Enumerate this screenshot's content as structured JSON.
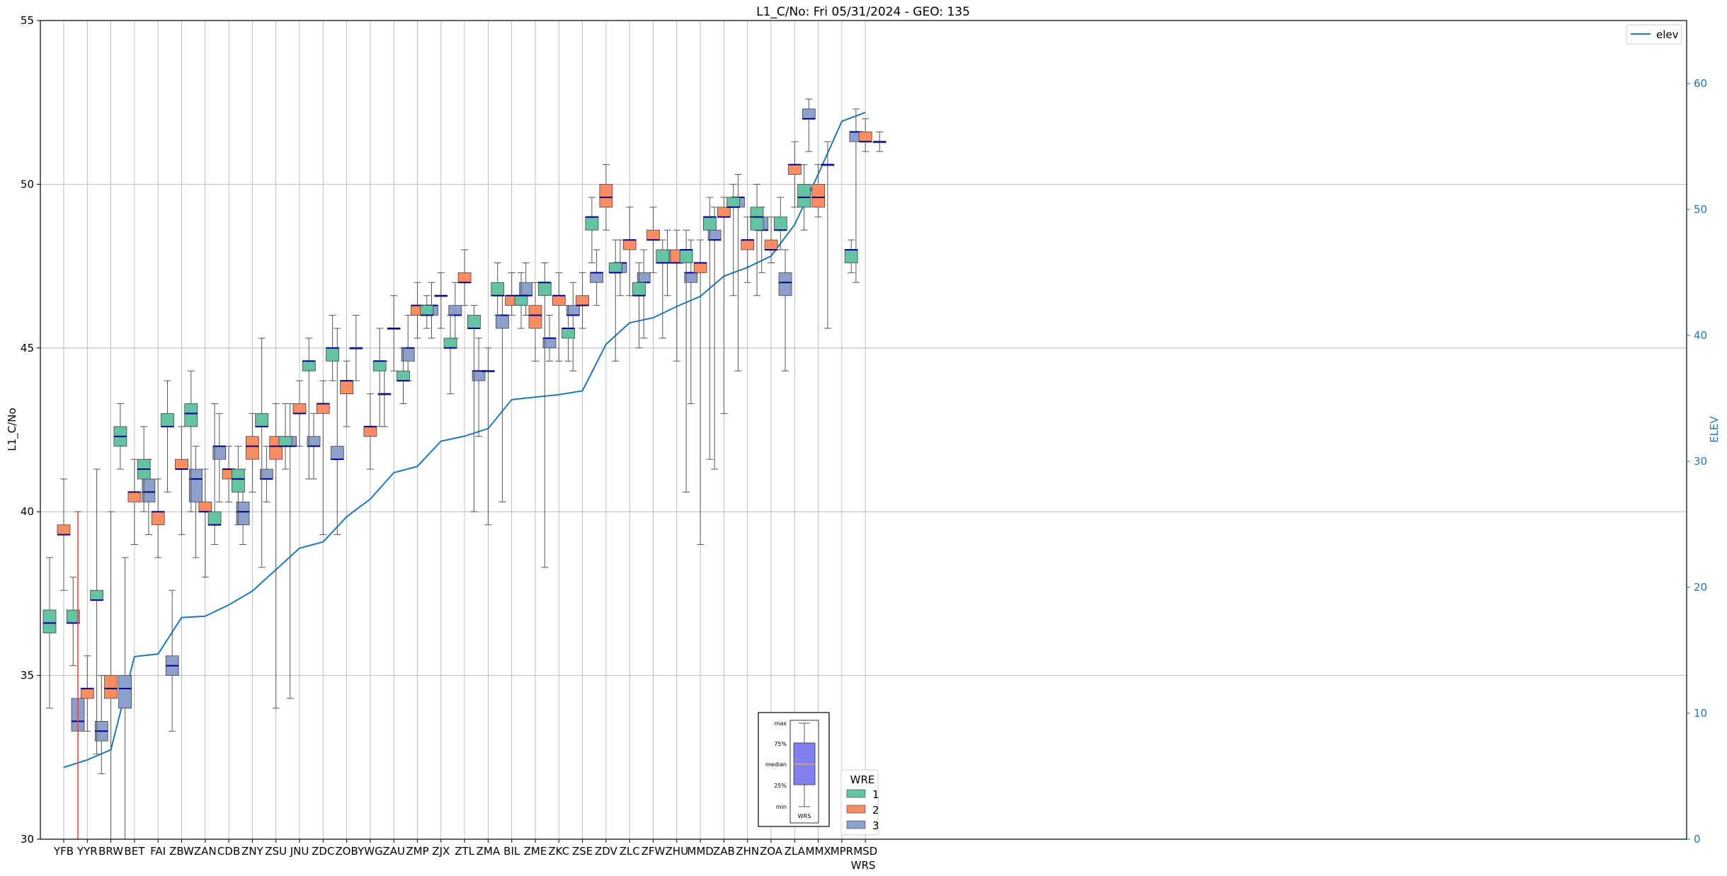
{
  "chart_data": {
    "type": "box",
    "title": "L1_C/No: Fri 05/31/2024 - GEO: 135",
    "xlabel": "WRS",
    "ylabel": "L1_C/No",
    "y2label": "ELEV",
    "ylim": [
      30,
      55
    ],
    "y2lim": [
      0,
      65
    ],
    "yticks": [
      30,
      35,
      40,
      45,
      50,
      55
    ],
    "y2ticks": [
      0,
      10,
      20,
      30,
      40,
      50,
      60
    ],
    "grid": true,
    "categories": [
      "YFB",
      "YYR",
      "BRW",
      "BET",
      "FAI",
      "ZBW",
      "ZAN",
      "CDB",
      "ZNY",
      "ZSU",
      "JNU",
      "ZDC",
      "ZOB",
      "YWG",
      "ZAU",
      "ZMP",
      "ZJX",
      "ZTL",
      "ZMA",
      "BIL",
      "ZME",
      "ZKC",
      "ZSE",
      "ZDV",
      "ZLC",
      "ZFW",
      "ZHU",
      "MMD",
      "ZAB",
      "ZHN",
      "ZOA",
      "ZLA",
      "MMX",
      "MPR",
      "MSD"
    ],
    "wre_colors": {
      "1": "#66c2a5",
      "2": "#fc8d62",
      "3": "#8da0cb"
    },
    "boxes": [
      {
        "cat": "YFB",
        "wre": 1,
        "min": 34.0,
        "q1": 36.3,
        "median": 36.6,
        "q3": 37.0,
        "max": 38.6
      },
      {
        "cat": "YFB",
        "wre": 2,
        "min": 37.6,
        "q1": 39.3,
        "median": 39.3,
        "q3": 39.6,
        "max": 41.0
      },
      {
        "cat": "YFB",
        "wre": 3,
        "min": 30.0,
        "q1": 33.3,
        "median": 33.6,
        "q3": 34.3,
        "max": 40.0
      },
      {
        "cat": "YYR",
        "wre": 1,
        "min": 35.3,
        "q1": 36.6,
        "median": 36.6,
        "q3": 37.0,
        "max": 38.0
      },
      {
        "cat": "YYR",
        "wre": 2,
        "min": 33.3,
        "q1": 34.3,
        "median": 34.6,
        "q3": 34.6,
        "max": 35.6
      },
      {
        "cat": "YYR",
        "wre": 3,
        "min": 32.0,
        "q1": 33.0,
        "median": 33.3,
        "q3": 33.6,
        "max": 35.0
      },
      {
        "cat": "BRW",
        "wre": 1,
        "min": 32.6,
        "q1": 37.3,
        "median": 37.3,
        "q3": 37.6,
        "max": 41.3
      },
      {
        "cat": "BRW",
        "wre": 2,
        "min": 30.0,
        "q1": 34.3,
        "median": 34.6,
        "q3": 35.0,
        "max": 40.0
      },
      {
        "cat": "BRW",
        "wre": 3,
        "min": 30.0,
        "q1": 34.0,
        "median": 34.6,
        "q3": 35.0,
        "max": 38.6
      },
      {
        "cat": "BET",
        "wre": 1,
        "min": 41.3,
        "q1": 42.0,
        "median": 42.3,
        "q3": 42.6,
        "max": 43.3
      },
      {
        "cat": "BET",
        "wre": 2,
        "min": 39.0,
        "q1": 40.3,
        "median": 40.6,
        "q3": 40.6,
        "max": 41.6
      },
      {
        "cat": "BET",
        "wre": 3,
        "min": 39.3,
        "q1": 40.3,
        "median": 40.6,
        "q3": 41.0,
        "max": 41.6
      },
      {
        "cat": "FAI",
        "wre": 1,
        "min": 40.0,
        "q1": 41.0,
        "median": 41.3,
        "q3": 41.6,
        "max": 42.6
      },
      {
        "cat": "FAI",
        "wre": 2,
        "min": 38.6,
        "q1": 39.6,
        "median": 40.0,
        "q3": 40.0,
        "max": 41.0
      },
      {
        "cat": "FAI",
        "wre": 3,
        "min": 33.3,
        "q1": 35.0,
        "median": 35.3,
        "q3": 35.6,
        "max": 37.6
      },
      {
        "cat": "ZBW",
        "wre": 1,
        "min": 40.6,
        "q1": 42.6,
        "median": 42.6,
        "q3": 43.0,
        "max": 44.0
      },
      {
        "cat": "ZBW",
        "wre": 2,
        "min": 39.3,
        "q1": 41.3,
        "median": 41.3,
        "q3": 41.6,
        "max": 42.6
      },
      {
        "cat": "ZBW",
        "wre": 3,
        "min": 38.6,
        "q1": 40.3,
        "median": 41.0,
        "q3": 41.3,
        "max": 42.0
      },
      {
        "cat": "ZAN",
        "wre": 1,
        "min": 40.0,
        "q1": 42.6,
        "median": 43.0,
        "q3": 43.3,
        "max": 44.3
      },
      {
        "cat": "ZAN",
        "wre": 2,
        "min": 38.0,
        "q1": 40.0,
        "median": 40.0,
        "q3": 40.3,
        "max": 41.3
      },
      {
        "cat": "ZAN",
        "wre": 3,
        "min": 40.3,
        "q1": 41.6,
        "median": 42.0,
        "q3": 42.0,
        "max": 43.0
      },
      {
        "cat": "CDB",
        "wre": 1,
        "min": 39.0,
        "q1": 39.6,
        "median": 39.6,
        "q3": 40.0,
        "max": 43.3
      },
      {
        "cat": "CDB",
        "wre": 2,
        "min": 40.3,
        "q1": 41.0,
        "median": 41.3,
        "q3": 41.3,
        "max": 42.0
      },
      {
        "cat": "CDB",
        "wre": 3,
        "min": 39.0,
        "q1": 39.6,
        "median": 40.0,
        "q3": 40.3,
        "max": 41.3
      },
      {
        "cat": "ZNY",
        "wre": 1,
        "min": 39.6,
        "q1": 40.6,
        "median": 41.0,
        "q3": 41.3,
        "max": 42.0
      },
      {
        "cat": "ZNY",
        "wre": 2,
        "min": 40.6,
        "q1": 41.6,
        "median": 42.0,
        "q3": 42.3,
        "max": 43.0
      },
      {
        "cat": "ZNY",
        "wre": 3,
        "min": 40.3,
        "q1": 41.0,
        "median": 41.0,
        "q3": 41.3,
        "max": 42.0
      },
      {
        "cat": "ZSU",
        "wre": 1,
        "min": 38.3,
        "q1": 42.6,
        "median": 42.6,
        "q3": 43.0,
        "max": 45.3
      },
      {
        "cat": "ZSU",
        "wre": 2,
        "min": 34.0,
        "q1": 41.6,
        "median": 42.0,
        "q3": 42.3,
        "max": 43.3
      },
      {
        "cat": "ZSU",
        "wre": 3,
        "min": 34.3,
        "q1": 42.0,
        "median": 42.0,
        "q3": 42.3,
        "max": 43.3
      },
      {
        "cat": "JNU",
        "wre": 1,
        "min": 41.3,
        "q1": 42.0,
        "median": 42.0,
        "q3": 42.3,
        "max": 43.3
      },
      {
        "cat": "JNU",
        "wre": 2,
        "min": 42.0,
        "q1": 43.0,
        "median": 43.0,
        "q3": 43.3,
        "max": 44.0
      },
      {
        "cat": "JNU",
        "wre": 3,
        "min": 41.0,
        "q1": 42.0,
        "median": 42.0,
        "q3": 42.3,
        "max": 43.0
      },
      {
        "cat": "ZDC",
        "wre": 1,
        "min": 41.0,
        "q1": 44.3,
        "median": 44.6,
        "q3": 44.6,
        "max": 45.3
      },
      {
        "cat": "ZDC",
        "wre": 2,
        "min": 39.3,
        "q1": 43.0,
        "median": 43.3,
        "q3": 43.3,
        "max": 44.0
      },
      {
        "cat": "ZDC",
        "wre": 3,
        "min": 39.3,
        "q1": 41.6,
        "median": 41.6,
        "q3": 42.0,
        "max": 45.6
      },
      {
        "cat": "ZOB",
        "wre": 1,
        "min": 44.0,
        "q1": 44.6,
        "median": 45.0,
        "q3": 45.0,
        "max": 46.0
      },
      {
        "cat": "ZOB",
        "wre": 2,
        "min": 42.6,
        "q1": 43.6,
        "median": 44.0,
        "q3": 44.0,
        "max": 44.6
      },
      {
        "cat": "YWG",
        "wre": 3,
        "min": 42.6,
        "q1": 43.6,
        "median": 43.6,
        "q3": 43.6,
        "max": 44.6
      },
      {
        "cat": "YWG",
        "wre": 2,
        "min": 41.3,
        "q1": 42.3,
        "median": 42.6,
        "q3": 42.6,
        "max": 43.6
      },
      {
        "cat": "YWG",
        "wre": 1,
        "min": 44.0,
        "q1": 45.0,
        "median": 45.0,
        "q3": 45.0,
        "max": 46.0
      },
      {
        "cat": "ZAU",
        "wre": 1,
        "min": 42.6,
        "q1": 44.3,
        "median": 44.6,
        "q3": 44.6,
        "max": 45.6
      },
      {
        "cat": "ZAU",
        "wre": 2,
        "min": 44.3,
        "q1": 45.6,
        "median": 45.6,
        "q3": 45.6,
        "max": 46.6
      },
      {
        "cat": "ZAU",
        "wre": 3,
        "min": 44.0,
        "q1": 44.6,
        "median": 45.0,
        "q3": 45.0,
        "max": 46.0
      },
      {
        "cat": "ZMP",
        "wre": 1,
        "min": 43.3,
        "q1": 44.0,
        "median": 44.0,
        "q3": 44.3,
        "max": 45.0
      },
      {
        "cat": "ZMP",
        "wre": 2,
        "min": 45.3,
        "q1": 46.0,
        "median": 46.3,
        "q3": 46.3,
        "max": 47.0
      },
      {
        "cat": "ZMP",
        "wre": 3,
        "min": 45.3,
        "q1": 46.0,
        "median": 46.3,
        "q3": 46.3,
        "max": 47.0
      },
      {
        "cat": "ZJX",
        "wre": 1,
        "min": 45.6,
        "q1": 46.0,
        "median": 46.0,
        "q3": 46.3,
        "max": 46.6
      },
      {
        "cat": "ZJX",
        "wre": 2,
        "min": 45.6,
        "q1": 46.6,
        "median": 46.6,
        "q3": 46.6,
        "max": 47.3
      },
      {
        "cat": "ZJX",
        "wre": 3,
        "min": 45.3,
        "q1": 46.0,
        "median": 46.0,
        "q3": 46.3,
        "max": 47.0
      },
      {
        "cat": "ZTL",
        "wre": 1,
        "min": 43.6,
        "q1": 45.0,
        "median": 45.0,
        "q3": 45.3,
        "max": 46.0
      },
      {
        "cat": "ZTL",
        "wre": 2,
        "min": 46.3,
        "q1": 47.0,
        "median": 47.0,
        "q3": 47.3,
        "max": 48.0
      },
      {
        "cat": "ZTL",
        "wre": 3,
        "min": 42.3,
        "q1": 44.0,
        "median": 44.3,
        "q3": 44.3,
        "max": 45.3
      },
      {
        "cat": "ZMA",
        "wre": 1,
        "min": 40.0,
        "q1": 45.6,
        "median": 45.6,
        "q3": 46.0,
        "max": 46.3
      },
      {
        "cat": "ZMA",
        "wre": 2,
        "min": 39.6,
        "q1": 44.3,
        "median": 44.3,
        "q3": 44.3,
        "max": 45.0
      },
      {
        "cat": "ZMA",
        "wre": 3,
        "min": 40.3,
        "q1": 45.6,
        "median": 46.0,
        "q3": 46.0,
        "max": 46.6
      },
      {
        "cat": "BIL",
        "wre": 1,
        "min": 46.0,
        "q1": 46.6,
        "median": 46.6,
        "q3": 47.0,
        "max": 47.6
      },
      {
        "cat": "BIL",
        "wre": 2,
        "min": 46.0,
        "q1": 46.3,
        "median": 46.6,
        "q3": 46.6,
        "max": 47.3
      },
      {
        "cat": "BIL",
        "wre": 3,
        "min": 46.0,
        "q1": 46.6,
        "median": 46.6,
        "q3": 47.0,
        "max": 47.6
      },
      {
        "cat": "ZME",
        "wre": 1,
        "min": 45.6,
        "q1": 46.3,
        "median": 46.6,
        "q3": 46.6,
        "max": 47.3
      },
      {
        "cat": "ZME",
        "wre": 2,
        "min": 44.6,
        "q1": 45.6,
        "median": 46.0,
        "q3": 46.3,
        "max": 47.0
      },
      {
        "cat": "ZME",
        "wre": 3,
        "min": 44.6,
        "q1": 45.0,
        "median": 45.3,
        "q3": 45.3,
        "max": 46.0
      },
      {
        "cat": "ZKC",
        "wre": 1,
        "min": 38.3,
        "q1": 46.6,
        "median": 47.0,
        "q3": 47.0,
        "max": 47.6
      },
      {
        "cat": "ZKC",
        "wre": 2,
        "min": 44.6,
        "q1": 46.3,
        "median": 46.6,
        "q3": 46.6,
        "max": 47.3
      },
      {
        "cat": "ZKC",
        "wre": 3,
        "min": 44.3,
        "q1": 46.0,
        "median": 46.0,
        "q3": 46.3,
        "max": 47.0
      },
      {
        "cat": "ZSE",
        "wre": 1,
        "min": 44.6,
        "q1": 45.3,
        "median": 45.6,
        "q3": 45.6,
        "max": 46.3
      },
      {
        "cat": "ZSE",
        "wre": 2,
        "min": 45.6,
        "q1": 46.3,
        "median": 46.3,
        "q3": 46.6,
        "max": 47.3
      },
      {
        "cat": "ZSE",
        "wre": 3,
        "min": 46.3,
        "q1": 47.0,
        "median": 47.3,
        "q3": 47.3,
        "max": 48.0
      },
      {
        "cat": "ZDV",
        "wre": 1,
        "min": 47.6,
        "q1": 48.6,
        "median": 49.0,
        "q3": 49.0,
        "max": 49.6
      },
      {
        "cat": "ZDV",
        "wre": 2,
        "min": 48.6,
        "q1": 49.3,
        "median": 49.6,
        "q3": 50.0,
        "max": 50.6
      },
      {
        "cat": "ZDV",
        "wre": 3,
        "min": 46.6,
        "q1": 47.3,
        "median": 47.6,
        "q3": 47.6,
        "max": 48.3
      },
      {
        "cat": "ZLC",
        "wre": 1,
        "min": 44.6,
        "q1": 47.3,
        "median": 47.3,
        "q3": 47.6,
        "max": 48.3
      },
      {
        "cat": "ZLC",
        "wre": 2,
        "min": 46.6,
        "q1": 48.0,
        "median": 48.3,
        "q3": 48.3,
        "max": 49.3
      },
      {
        "cat": "ZLC",
        "wre": 3,
        "min": 45.3,
        "q1": 47.0,
        "median": 47.0,
        "q3": 47.3,
        "max": 48.0
      },
      {
        "cat": "ZFW",
        "wre": 1,
        "min": 45.0,
        "q1": 46.6,
        "median": 46.6,
        "q3": 47.0,
        "max": 47.6
      },
      {
        "cat": "ZFW",
        "wre": 2,
        "min": 47.3,
        "q1": 48.3,
        "median": 48.3,
        "q3": 48.6,
        "max": 49.3
      },
      {
        "cat": "ZFW",
        "wre": 3,
        "min": 46.6,
        "q1": 47.6,
        "median": 47.6,
        "q3": 48.0,
        "max": 48.6
      },
      {
        "cat": "ZHU",
        "wre": 1,
        "min": 45.3,
        "q1": 47.6,
        "median": 47.6,
        "q3": 48.0,
        "max": 48.3
      },
      {
        "cat": "ZHU",
        "wre": 2,
        "min": 44.6,
        "q1": 47.6,
        "median": 47.6,
        "q3": 48.0,
        "max": 48.6
      },
      {
        "cat": "ZHU",
        "wre": 3,
        "min": 43.3,
        "q1": 47.0,
        "median": 47.3,
        "q3": 47.3,
        "max": 48.3
      },
      {
        "cat": "MMD",
        "wre": 1,
        "min": 40.6,
        "q1": 47.6,
        "median": 48.0,
        "q3": 48.0,
        "max": 48.6
      },
      {
        "cat": "MMD",
        "wre": 2,
        "min": 39.0,
        "q1": 47.3,
        "median": 47.6,
        "q3": 47.6,
        "max": 48.3
      },
      {
        "cat": "MMD",
        "wre": 3,
        "min": 41.3,
        "q1": 48.3,
        "median": 48.3,
        "q3": 48.6,
        "max": 49.3
      },
      {
        "cat": "ZAB",
        "wre": 1,
        "min": 41.6,
        "q1": 48.6,
        "median": 49.0,
        "q3": 49.0,
        "max": 49.6
      },
      {
        "cat": "ZAB",
        "wre": 2,
        "min": 43.0,
        "q1": 49.0,
        "median": 49.0,
        "q3": 49.3,
        "max": 49.6
      },
      {
        "cat": "ZAB",
        "wre": 3,
        "min": 44.3,
        "q1": 49.3,
        "median": 49.6,
        "q3": 49.6,
        "max": 50.3
      },
      {
        "cat": "ZHN",
        "wre": 1,
        "min": 46.6,
        "q1": 49.3,
        "median": 49.3,
        "q3": 49.6,
        "max": 50.0
      },
      {
        "cat": "ZHN",
        "wre": 2,
        "min": 47.0,
        "q1": 48.0,
        "median": 48.3,
        "q3": 48.3,
        "max": 49.0
      },
      {
        "cat": "ZHN",
        "wre": 3,
        "min": 47.3,
        "q1": 48.6,
        "median": 48.6,
        "q3": 49.0,
        "max": 49.3
      },
      {
        "cat": "ZOA",
        "wre": 1,
        "min": 46.6,
        "q1": 48.6,
        "median": 49.0,
        "q3": 49.3,
        "max": 50.0
      },
      {
        "cat": "ZOA",
        "wre": 2,
        "min": 47.6,
        "q1": 48.0,
        "median": 48.0,
        "q3": 48.3,
        "max": 49.0
      },
      {
        "cat": "ZOA",
        "wre": 3,
        "min": 44.3,
        "q1": 46.6,
        "median": 47.0,
        "q3": 47.3,
        "max": 48.0
      },
      {
        "cat": "ZLA",
        "wre": 1,
        "min": 48.0,
        "q1": 48.6,
        "median": 48.6,
        "q3": 49.0,
        "max": 49.6
      },
      {
        "cat": "ZLA",
        "wre": 2,
        "min": 49.3,
        "q1": 50.3,
        "median": 50.6,
        "q3": 50.6,
        "max": 51.3
      },
      {
        "cat": "ZLA",
        "wre": 3,
        "min": 51.0,
        "q1": 52.0,
        "median": 52.0,
        "q3": 52.3,
        "max": 52.6
      },
      {
        "cat": "MMX",
        "wre": 1,
        "min": 48.6,
        "q1": 49.3,
        "median": 49.6,
        "q3": 50.0,
        "max": 50.6
      },
      {
        "cat": "MMX",
        "wre": 2,
        "min": 49.0,
        "q1": 49.3,
        "median": 49.6,
        "q3": 50.0,
        "max": 50.6
      },
      {
        "cat": "MPR",
        "wre": 1,
        "min": 45.6,
        "q1": 50.6,
        "median": 50.6,
        "q3": 50.6,
        "max": 51.3
      },
      {
        "cat": "MPR",
        "wre": 3,
        "min": 47.0,
        "q1": 51.3,
        "median": 51.6,
        "q3": 51.6,
        "max": 52.3
      },
      {
        "cat": "MSD",
        "wre": 1,
        "min": 47.3,
        "q1": 47.6,
        "median": 48.0,
        "q3": 48.0,
        "max": 48.3
      },
      {
        "cat": "MSD",
        "wre": 2,
        "min": 51.0,
        "q1": 51.3,
        "median": 51.3,
        "q3": 51.6,
        "max": 52.0
      },
      {
        "cat": "MSD",
        "wre": 3,
        "min": 51.0,
        "q1": 51.3,
        "median": 51.3,
        "q3": 51.3,
        "max": 51.6
      }
    ],
    "elev_series": {
      "name": "elev",
      "values": [
        5.7,
        6.3,
        7.1,
        14.5,
        14.7,
        17.6,
        17.7,
        18.6,
        19.7,
        21.4,
        23.1,
        23.6,
        25.6,
        27.0,
        29.1,
        29.6,
        31.6,
        32.0,
        32.6,
        34.9,
        35.1,
        35.3,
        35.6,
        39.3,
        41.0,
        41.4,
        42.3,
        43.1,
        44.7,
        45.4,
        46.3,
        48.8,
        52.8,
        57.0,
        57.7
      ]
    },
    "legend": {
      "elev_label": "elev",
      "wre_title": "WRE",
      "wre_labels": [
        "1",
        "2",
        "3"
      ],
      "elev_placement": "top-right",
      "wre_placement": "bottom-center"
    },
    "key_box_labels": [
      "max",
      "75%",
      "median",
      "25%",
      "min",
      "WRS"
    ]
  }
}
